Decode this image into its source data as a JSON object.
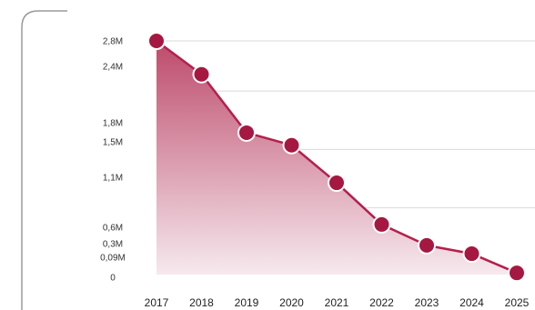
{
  "chart_data": {
    "type": "area",
    "title": "",
    "xlabel": "",
    "ylabel": "",
    "x": [
      "2017",
      "2018",
      "2019",
      "2020",
      "2021",
      "2022",
      "2023",
      "2024",
      "2025"
    ],
    "series": [
      {
        "values": [
          2.8,
          2.4,
          1.7,
          1.55,
          1.1,
          0.6,
          0.35,
          0.25,
          0.02
        ]
      }
    ],
    "y_tick_labels": [
      {
        "value": 2.8,
        "label": "2,8M"
      },
      {
        "value": 2.4,
        "label": "2,4M"
      },
      {
        "value": 1.8,
        "label": "1,8M"
      },
      {
        "value": 1.5,
        "label": "1,5M"
      },
      {
        "value": 1.1,
        "label": "1,1M"
      },
      {
        "value": 0.6,
        "label": "0,6M"
      },
      {
        "value": 0.3,
        "label": "0,3M"
      },
      {
        "value": 0.09,
        "label": "0,09M"
      },
      {
        "value": 0,
        "label": "0"
      }
    ],
    "gridline_values": [
      2.8,
      2.2,
      1.5,
      0.8
    ],
    "ylim": [
      0,
      2.8
    ],
    "grid": true,
    "legend": "none",
    "colors": {
      "line": "#b51f4b",
      "marker": "#a51841",
      "marker_stroke": "#ffffff",
      "fill_top": "#bd4a6b",
      "fill_bottom": "#f6e9ee",
      "grid": "#d9d9d9",
      "frame": "#9a9a9a"
    }
  }
}
